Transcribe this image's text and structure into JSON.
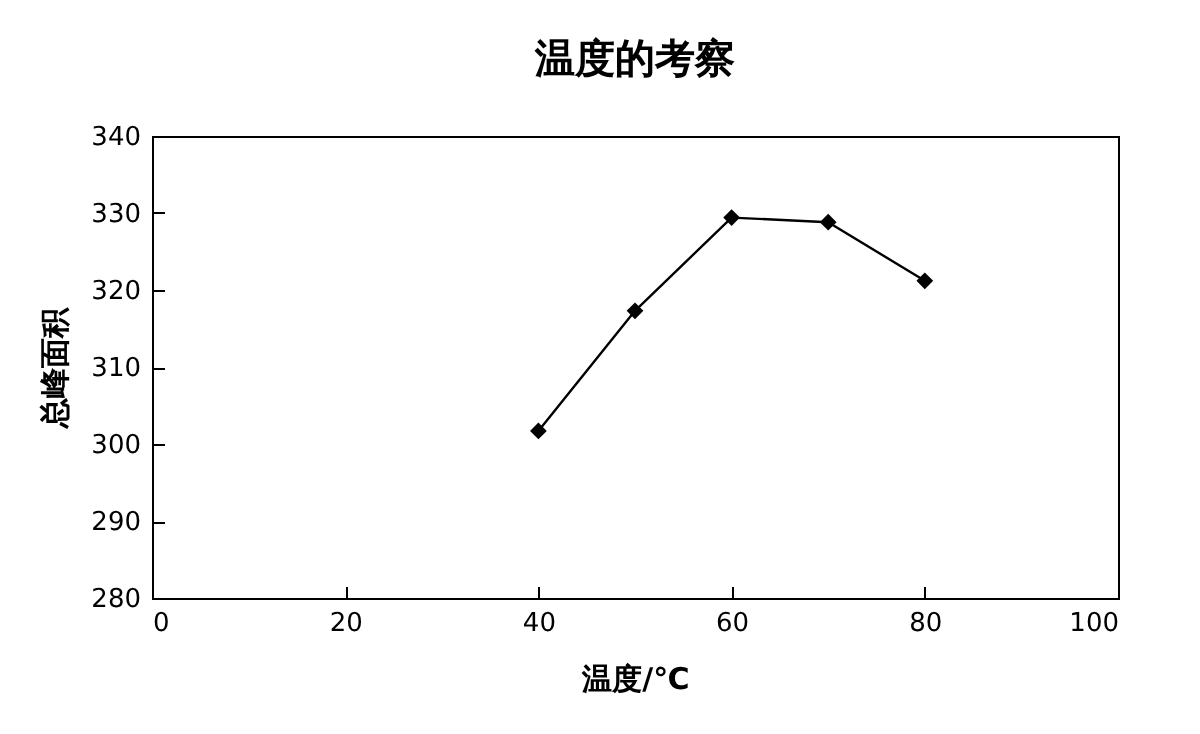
{
  "chart_data": {
    "type": "line",
    "title": "温度的考察",
    "xlabel": "温度/℃",
    "ylabel": "总峰面积",
    "x": [
      40,
      50,
      60,
      70,
      80
    ],
    "series": [
      {
        "color": "#000000",
        "values": [
          301.7,
          317.3,
          329.4,
          328.8,
          321.2
        ]
      }
    ],
    "xlim": [
      0,
      100
    ],
    "xticks": [
      0,
      20,
      40,
      60,
      80,
      100
    ],
    "ylim": [
      280,
      340
    ],
    "yticks": [
      280,
      290,
      300,
      310,
      320,
      330,
      340
    ],
    "grid": false,
    "marker": "diamond",
    "line_style": "solid"
  }
}
